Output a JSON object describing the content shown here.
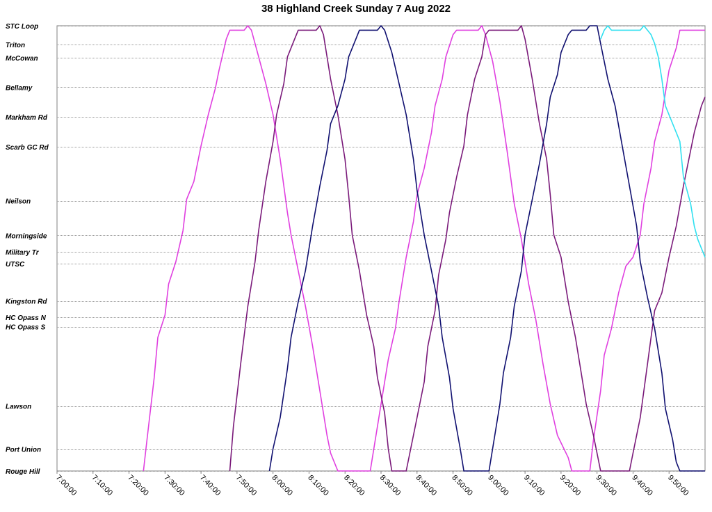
{
  "chart_data": {
    "type": "line",
    "title": "38 Highland Creek Sunday 7 Aug 2022",
    "xlabel": "",
    "ylabel": "",
    "x_unit": "time of day",
    "xlim": [
      "7:00:00",
      "10:00:00"
    ],
    "x_ticks": [
      "7:00:00",
      "7:10:00",
      "7:20:00",
      "7:30:00",
      "7:40:00",
      "7:50:00",
      "8:00:00",
      "8:10:00",
      "8:20:00",
      "8:30:00",
      "8:40:00",
      "8:50:00",
      "9:00:00",
      "9:10:00",
      "9:20:00",
      "9:30:00",
      "9:40:00",
      "9:50:00"
    ],
    "stops": [
      {
        "name": "STC Loop",
        "pos": 0.0
      },
      {
        "name": "Triton",
        "pos": 0.042
      },
      {
        "name": "McCowan",
        "pos": 0.072
      },
      {
        "name": "Bellamy",
        "pos": 0.138
      },
      {
        "name": "Markham Rd",
        "pos": 0.205
      },
      {
        "name": "Scarb GC Rd",
        "pos": 0.272
      },
      {
        "name": "Neilson",
        "pos": 0.393
      },
      {
        "name": "Morningside",
        "pos": 0.471
      },
      {
        "name": "Military Tr",
        "pos": 0.508
      },
      {
        "name": "UTSC",
        "pos": 0.534
      },
      {
        "name": "Kingston Rd",
        "pos": 0.618
      },
      {
        "name": "HC Opass N",
        "pos": 0.655
      },
      {
        "name": "HC Opass S",
        "pos": 0.676
      },
      {
        "name": "Lawson",
        "pos": 0.854
      },
      {
        "name": "Port Union",
        "pos": 0.951
      },
      {
        "name": "Rouge Hill",
        "pos": 1.0
      }
    ],
    "grid": true,
    "legend": "none",
    "series": [
      {
        "color": "#e040e0",
        "points": [
          [
            "7:24:00",
            1.0
          ],
          [
            "7:25:00",
            0.93
          ],
          [
            "7:27:00",
            0.79
          ],
          [
            "7:28:00",
            0.7
          ],
          [
            "7:30:00",
            0.65
          ],
          [
            "7:31:00",
            0.58
          ],
          [
            "7:33:00",
            0.53
          ],
          [
            "7:35:00",
            0.46
          ],
          [
            "7:36:00",
            0.39
          ],
          [
            "7:38:00",
            0.35
          ],
          [
            "7:40:00",
            0.27
          ],
          [
            "7:42:00",
            0.2
          ],
          [
            "7:44:00",
            0.14
          ],
          [
            "7:45:00",
            0.1
          ],
          [
            "7:47:00",
            0.03
          ],
          [
            "7:48:00",
            0.01
          ],
          [
            "7:52:00",
            0.01
          ],
          [
            "7:53:00",
            0.0
          ],
          [
            "7:54:00",
            0.01
          ],
          [
            "7:56:00",
            0.07
          ],
          [
            "7:58:00",
            0.13
          ],
          [
            "8:00:00",
            0.2
          ],
          [
            "8:02:00",
            0.3
          ],
          [
            "8:04:00",
            0.42
          ],
          [
            "8:05:00",
            0.47
          ],
          [
            "8:07:00",
            0.55
          ],
          [
            "8:09:00",
            0.63
          ],
          [
            "8:11:00",
            0.72
          ],
          [
            "8:13:00",
            0.82
          ],
          [
            "8:15:00",
            0.92
          ],
          [
            "8:16:00",
            0.96
          ],
          [
            "8:18:00",
            1.0
          ],
          [
            "8:27:00",
            1.0
          ],
          [
            "8:30:00",
            0.85
          ],
          [
            "8:32:00",
            0.75
          ],
          [
            "8:34:00",
            0.68
          ],
          [
            "8:35:00",
            0.62
          ],
          [
            "8:37:00",
            0.52
          ],
          [
            "8:39:00",
            0.44
          ],
          [
            "8:40:00",
            0.38
          ],
          [
            "8:42:00",
            0.32
          ],
          [
            "8:44:00",
            0.24
          ],
          [
            "8:45:00",
            0.18
          ],
          [
            "8:47:00",
            0.12
          ],
          [
            "8:48:00",
            0.07
          ],
          [
            "8:50:00",
            0.02
          ],
          [
            "8:51:00",
            0.01
          ],
          [
            "8:57:00",
            0.01
          ],
          [
            "8:58:00",
            0.0
          ],
          [
            "8:59:00",
            0.02
          ],
          [
            "9:01:00",
            0.08
          ],
          [
            "9:03:00",
            0.17
          ],
          [
            "9:05:00",
            0.28
          ],
          [
            "9:07:00",
            0.4
          ],
          [
            "9:09:00",
            0.48
          ],
          [
            "9:11:00",
            0.58
          ],
          [
            "9:13:00",
            0.66
          ],
          [
            "9:15:00",
            0.76
          ],
          [
            "9:17:00",
            0.85
          ],
          [
            "9:19:00",
            0.92
          ],
          [
            "9:22:00",
            0.97
          ],
          [
            "9:23:00",
            1.0
          ],
          [
            "9:28:00",
            1.0
          ],
          [
            "9:29:00",
            0.93
          ],
          [
            "9:31:00",
            0.82
          ],
          [
            "9:32:00",
            0.74
          ],
          [
            "9:34:00",
            0.68
          ],
          [
            "9:36:00",
            0.6
          ],
          [
            "9:38:00",
            0.54
          ],
          [
            "9:40:00",
            0.52
          ],
          [
            "9:42:00",
            0.47
          ],
          [
            "9:43:00",
            0.4
          ],
          [
            "9:45:00",
            0.32
          ],
          [
            "9:46:00",
            0.26
          ],
          [
            "9:48:00",
            0.2
          ],
          [
            "9:49:00",
            0.15
          ],
          [
            "9:50:00",
            0.1
          ],
          [
            "9:52:00",
            0.05
          ],
          [
            "9:53:00",
            0.01
          ],
          [
            "10:00:00",
            0.01
          ]
        ]
      },
      {
        "color": "#7a1a7a",
        "points": [
          [
            "7:48:00",
            1.0
          ],
          [
            "7:49:00",
            0.9
          ],
          [
            "7:51:00",
            0.76
          ],
          [
            "7:53:00",
            0.63
          ],
          [
            "7:55:00",
            0.53
          ],
          [
            "7:56:00",
            0.46
          ],
          [
            "7:58:00",
            0.35
          ],
          [
            "8:00:00",
            0.26
          ],
          [
            "8:01:00",
            0.2
          ],
          [
            "8:03:00",
            0.13
          ],
          [
            "8:04:00",
            0.07
          ],
          [
            "8:06:00",
            0.03
          ],
          [
            "8:07:00",
            0.01
          ],
          [
            "8:12:00",
            0.01
          ],
          [
            "8:13:00",
            0.0
          ],
          [
            "8:14:00",
            0.02
          ],
          [
            "8:16:00",
            0.12
          ],
          [
            "8:18:00",
            0.2
          ],
          [
            "8:20:00",
            0.3
          ],
          [
            "8:21:00",
            0.38
          ],
          [
            "8:22:00",
            0.47
          ],
          [
            "8:24:00",
            0.55
          ],
          [
            "8:26:00",
            0.65
          ],
          [
            "8:28:00",
            0.72
          ],
          [
            "8:29:00",
            0.79
          ],
          [
            "8:31:00",
            0.87
          ],
          [
            "8:32:00",
            0.95
          ],
          [
            "8:33:00",
            1.0
          ],
          [
            "8:37:00",
            1.0
          ],
          [
            "8:38:00",
            0.96
          ],
          [
            "8:40:00",
            0.88
          ],
          [
            "8:42:00",
            0.8
          ],
          [
            "8:43:00",
            0.72
          ],
          [
            "8:45:00",
            0.64
          ],
          [
            "8:46:00",
            0.56
          ],
          [
            "8:48:00",
            0.48
          ],
          [
            "8:49:00",
            0.42
          ],
          [
            "8:51:00",
            0.34
          ],
          [
            "8:53:00",
            0.27
          ],
          [
            "8:54:00",
            0.2
          ],
          [
            "8:56:00",
            0.12
          ],
          [
            "8:58:00",
            0.07
          ],
          [
            "8:59:00",
            0.02
          ],
          [
            "9:00:00",
            0.01
          ],
          [
            "9:08:00",
            0.01
          ],
          [
            "9:09:00",
            0.0
          ],
          [
            "9:10:00",
            0.03
          ],
          [
            "9:12:00",
            0.12
          ],
          [
            "9:14:00",
            0.22
          ],
          [
            "9:16:00",
            0.3
          ],
          [
            "9:17:00",
            0.38
          ],
          [
            "9:18:00",
            0.47
          ],
          [
            "9:20:00",
            0.52
          ],
          [
            "9:22:00",
            0.62
          ],
          [
            "9:24:00",
            0.7
          ],
          [
            "9:26:00",
            0.8
          ],
          [
            "9:27:00",
            0.85
          ],
          [
            "9:29:00",
            0.92
          ],
          [
            "9:31:00",
            1.0
          ],
          [
            "9:39:00",
            1.0
          ],
          [
            "9:40:00",
            0.96
          ],
          [
            "9:42:00",
            0.88
          ],
          [
            "9:44:00",
            0.76
          ],
          [
            "9:46:00",
            0.64
          ],
          [
            "9:48:00",
            0.6
          ],
          [
            "9:50:00",
            0.52
          ],
          [
            "9:52:00",
            0.45
          ],
          [
            "9:54:00",
            0.36
          ],
          [
            "9:56:00",
            0.28
          ],
          [
            "9:57:00",
            0.24
          ],
          [
            "9:59:00",
            0.18
          ],
          [
            "10:00:00",
            0.16
          ]
        ]
      },
      {
        "color": "#101070",
        "points": [
          [
            "7:59:00",
            1.0
          ],
          [
            "8:00:00",
            0.95
          ],
          [
            "8:02:00",
            0.88
          ],
          [
            "8:04:00",
            0.77
          ],
          [
            "8:05:00",
            0.7
          ],
          [
            "8:07:00",
            0.62
          ],
          [
            "8:09:00",
            0.55
          ],
          [
            "8:11:00",
            0.45
          ],
          [
            "8:13:00",
            0.36
          ],
          [
            "8:15:00",
            0.28
          ],
          [
            "8:16:00",
            0.22
          ],
          [
            "8:18:00",
            0.18
          ],
          [
            "8:20:00",
            0.12
          ],
          [
            "8:21:00",
            0.07
          ],
          [
            "8:23:00",
            0.03
          ],
          [
            "8:24:00",
            0.01
          ],
          [
            "8:29:00",
            0.01
          ],
          [
            "8:30:00",
            0.0
          ],
          [
            "8:31:00",
            0.01
          ],
          [
            "8:33:00",
            0.06
          ],
          [
            "8:35:00",
            0.13
          ],
          [
            "8:37:00",
            0.2
          ],
          [
            "8:39:00",
            0.3
          ],
          [
            "8:40:00",
            0.37
          ],
          [
            "8:42:00",
            0.47
          ],
          [
            "8:44:00",
            0.55
          ],
          [
            "8:46:00",
            0.63
          ],
          [
            "8:47:00",
            0.7
          ],
          [
            "8:49:00",
            0.79
          ],
          [
            "8:50:00",
            0.86
          ],
          [
            "8:52:00",
            0.95
          ],
          [
            "8:53:00",
            1.0
          ],
          [
            "9:00:00",
            1.0
          ],
          [
            "9:01:00",
            0.95
          ],
          [
            "9:03:00",
            0.85
          ],
          [
            "9:04:00",
            0.78
          ],
          [
            "9:06:00",
            0.7
          ],
          [
            "9:07:00",
            0.63
          ],
          [
            "9:09:00",
            0.55
          ],
          [
            "9:10:00",
            0.47
          ],
          [
            "9:12:00",
            0.39
          ],
          [
            "9:14:00",
            0.31
          ],
          [
            "9:16:00",
            0.22
          ],
          [
            "9:17:00",
            0.16
          ],
          [
            "9:19:00",
            0.11
          ],
          [
            "9:20:00",
            0.06
          ],
          [
            "9:22:00",
            0.02
          ],
          [
            "9:23:00",
            0.01
          ],
          [
            "9:27:00",
            0.01
          ],
          [
            "9:28:00",
            0.0
          ],
          [
            "9:30:00",
            0.0
          ],
          [
            "9:31:00",
            0.04
          ],
          [
            "9:33:00",
            0.12
          ],
          [
            "9:35:00",
            0.18
          ],
          [
            "9:37:00",
            0.27
          ],
          [
            "9:39:00",
            0.36
          ],
          [
            "9:41:00",
            0.45
          ],
          [
            "9:42:00",
            0.53
          ],
          [
            "9:44:00",
            0.61
          ],
          [
            "9:46:00",
            0.68
          ],
          [
            "9:48:00",
            0.78
          ],
          [
            "9:49:00",
            0.86
          ],
          [
            "9:51:00",
            0.93
          ],
          [
            "9:52:00",
            0.98
          ],
          [
            "9:53:00",
            1.0
          ],
          [
            "10:00:00",
            1.0
          ]
        ]
      },
      {
        "color": "#30e0f0",
        "points": [
          [
            "9:31:00",
            0.03
          ],
          [
            "9:32:00",
            0.01
          ],
          [
            "9:33:00",
            0.0
          ],
          [
            "9:34:00",
            0.01
          ],
          [
            "9:38:00",
            0.01
          ],
          [
            "9:40:00",
            0.01
          ],
          [
            "9:42:00",
            0.01
          ],
          [
            "9:43:00",
            0.0
          ],
          [
            "9:44:00",
            0.01
          ],
          [
            "9:45:00",
            0.02
          ],
          [
            "9:46:00",
            0.04
          ],
          [
            "9:47:00",
            0.07
          ],
          [
            "9:48:00",
            0.12
          ],
          [
            "9:49:00",
            0.18
          ],
          [
            "9:50:00",
            0.2
          ],
          [
            "9:52:00",
            0.24
          ],
          [
            "9:53:00",
            0.26
          ],
          [
            "9:54:00",
            0.34
          ],
          [
            "9:56:00",
            0.4
          ],
          [
            "9:57:00",
            0.45
          ],
          [
            "9:58:00",
            0.48
          ],
          [
            "10:00:00",
            0.52
          ]
        ]
      }
    ]
  }
}
